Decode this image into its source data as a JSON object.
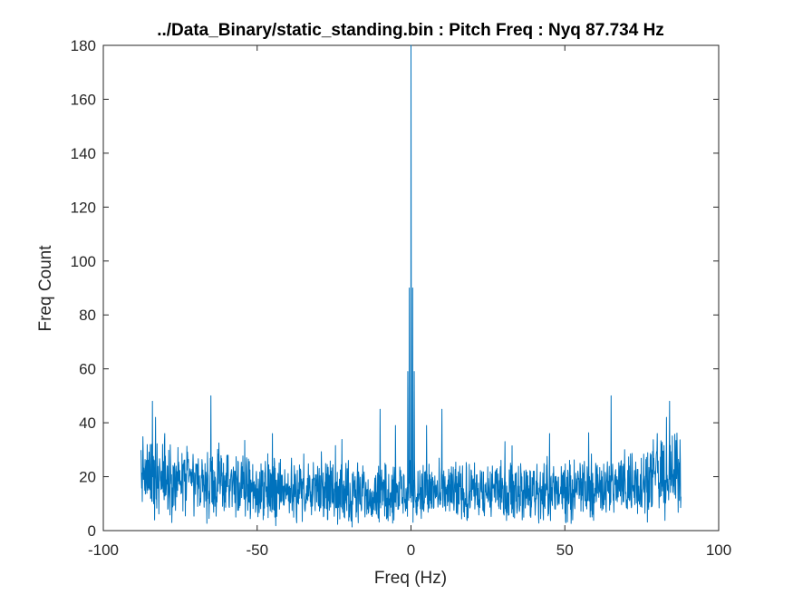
{
  "chart_data": {
    "type": "line",
    "title": "../Data_Binary/static_standing.bin : Pitch Freq : Nyq 87.734 Hz",
    "xlabel": "Freq (Hz)",
    "ylabel": "Freq Count",
    "xlim": [
      -100,
      100
    ],
    "ylim": [
      0,
      180
    ],
    "xticks": [
      -100,
      -50,
      0,
      50,
      100
    ],
    "yticks": [
      0,
      20,
      40,
      60,
      80,
      100,
      120,
      140,
      160,
      180
    ],
    "grid": false,
    "legend": "none",
    "line_color": "#0072BD",
    "series": [
      {
        "x_range": [
          -87.734,
          87.734
        ],
        "n_points": 1756,
        "peak": {
          "x": 0,
          "y": 180
        },
        "noise_floor_typical": [
          5,
          25
        ],
        "notable_values": [
          {
            "x": -84,
            "y": 48
          },
          {
            "x": -83,
            "y": 42
          },
          {
            "x": -80,
            "y": 36
          },
          {
            "x": -65,
            "y": 50
          },
          {
            "x": -45,
            "y": 36
          },
          {
            "x": -10,
            "y": 45
          },
          {
            "x": -5,
            "y": 39
          },
          {
            "x": -1,
            "y": 59
          },
          {
            "x": -0.5,
            "y": 90
          },
          {
            "x": 0,
            "y": 180
          },
          {
            "x": 0.5,
            "y": 90
          },
          {
            "x": 1,
            "y": 59
          },
          {
            "x": 5,
            "y": 39
          },
          {
            "x": 10,
            "y": 45
          },
          {
            "x": 45,
            "y": 36
          },
          {
            "x": 65,
            "y": 50
          },
          {
            "x": 80,
            "y": 36
          },
          {
            "x": 83,
            "y": 42
          },
          {
            "x": 84,
            "y": 48
          }
        ]
      }
    ]
  }
}
